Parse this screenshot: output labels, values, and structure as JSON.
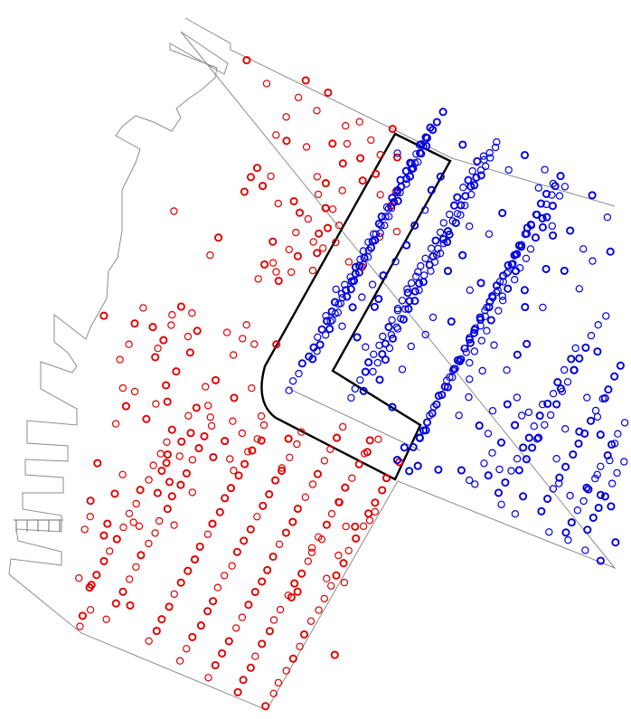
{
  "colors": {
    "background": "#ffffff",
    "outline": "#8c8c8c",
    "zone_boundary": "#000000",
    "group_a": "#e00000",
    "group_b": "#0000dd"
  },
  "groups": [
    {
      "name": "",
      "color_key": "group_a",
      "side": "west"
    },
    {
      "name": "",
      "color_key": "group_b",
      "side": "east"
    }
  ]
}
